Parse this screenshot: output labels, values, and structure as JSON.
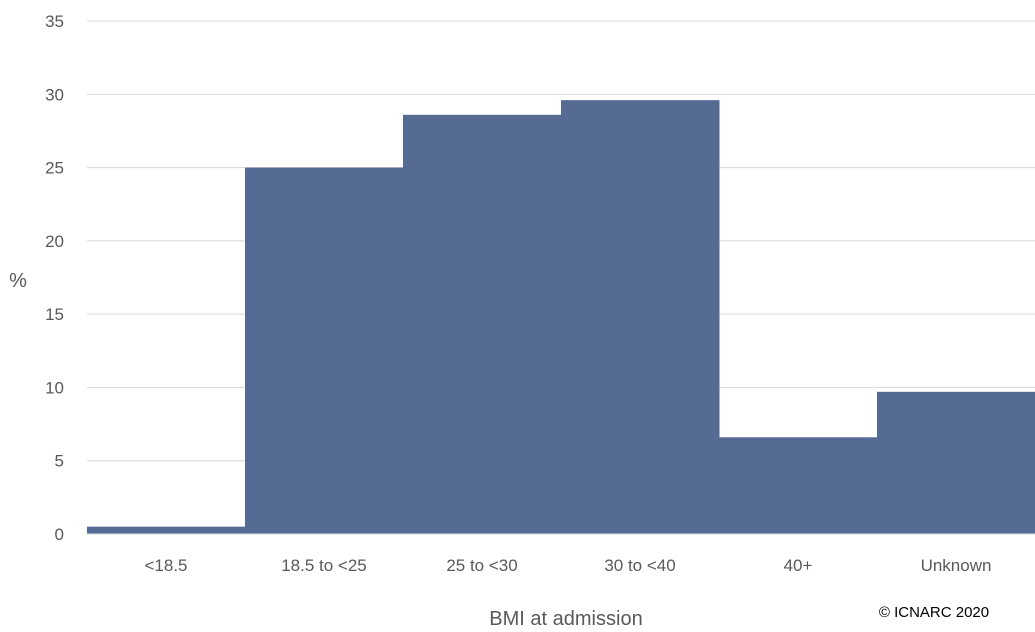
{
  "chart_data": {
    "type": "bar",
    "categories": [
      "<18.5",
      "18.5 to <25",
      "25 to <30",
      "30 to <40",
      "40+",
      "Unknown"
    ],
    "values": [
      0.5,
      25.0,
      28.6,
      29.6,
      6.6,
      9.7
    ],
    "ylabel": "%",
    "xlabel": "BMI at admission",
    "ylim": [
      0,
      35
    ],
    "yticks": [
      "0",
      "5",
      "10",
      "15",
      "20",
      "25",
      "30",
      "35"
    ],
    "grid": true,
    "bar_color": "#556B94",
    "annotation": "© ICNARC 2020"
  }
}
